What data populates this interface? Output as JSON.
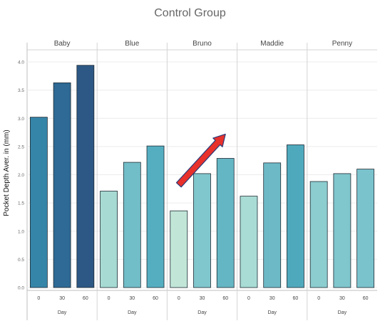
{
  "chart_data": {
    "type": "bar",
    "title": "Control Group",
    "ylabel": "Pocket Depth Aver. in (mm)",
    "xlabel": "Day",
    "ylim": [
      0,
      4.0
    ],
    "yticks": [
      "0.0",
      "0.5",
      "1.0",
      "1.5",
      "2.0",
      "2.5",
      "3.0",
      "3.5",
      "4.0"
    ],
    "days": [
      "0",
      "30",
      "60"
    ],
    "groups": [
      {
        "name": "Baby",
        "values": [
          3.02,
          3.63,
          3.94
        ],
        "colors": [
          "#3585a8",
          "#2e6a95",
          "#2d5885"
        ]
      },
      {
        "name": "Blue",
        "values": [
          1.71,
          2.22,
          2.51
        ],
        "colors": [
          "#a6dad3",
          "#72bec8",
          "#54aec0"
        ]
      },
      {
        "name": "Bruno",
        "values": [
          1.36,
          2.02,
          2.29
        ],
        "colors": [
          "#c1e6d8",
          "#80c7cd",
          "#64b6c4"
        ]
      },
      {
        "name": "Maddie",
        "values": [
          1.62,
          2.21,
          2.53
        ],
        "colors": [
          "#a8dcd5",
          "#6dbac6",
          "#4fa9bd"
        ]
      },
      {
        "name": "Penny",
        "values": [
          1.88,
          2.02,
          2.1
        ],
        "colors": [
          "#8ccdcf",
          "#80c6cd",
          "#7ac3cd"
        ]
      }
    ],
    "annotation": {
      "type": "arrow",
      "color": "#e8312b",
      "outline": "#2a3b7a",
      "from": {
        "group": "Bruno",
        "day": "0",
        "value": 1.82
      },
      "to": {
        "group": "Bruno",
        "day": "60",
        "value": 2.72
      }
    },
    "grid": true,
    "legend": "none"
  }
}
